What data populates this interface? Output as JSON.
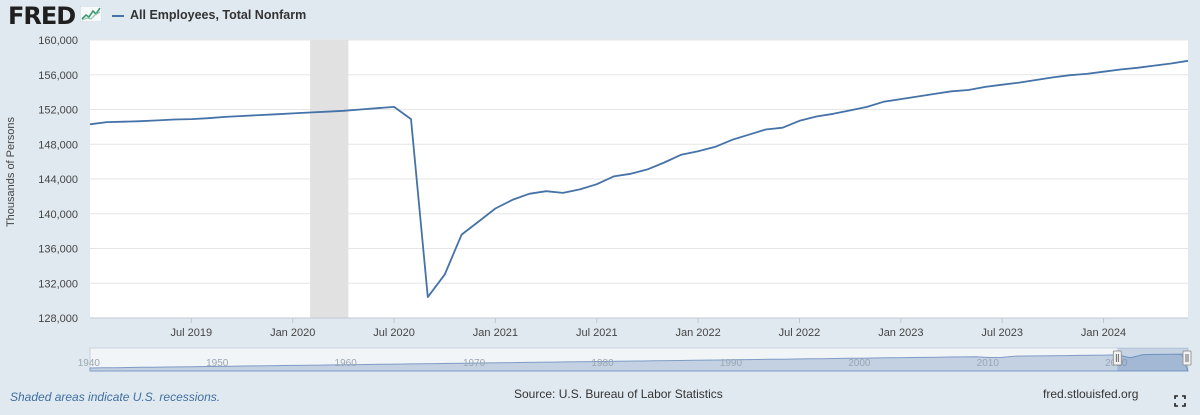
{
  "header": {
    "logo": "FRED",
    "legend_label": "All Employees, Total Nonfarm",
    "series_color": "#4572a7"
  },
  "footer": {
    "recession_note": "Shaded areas indicate U.S. recessions.",
    "source": "Source: U.S. Bureau of Labor Statistics",
    "site": "fred.stlouisfed.org"
  },
  "navigator": {
    "year_labels": [
      "1940",
      "1950",
      "1960",
      "1970",
      "1980",
      "1990",
      "2000",
      "2010",
      "2020"
    ]
  },
  "chart_data": {
    "type": "line",
    "title": "",
    "xlabel": "",
    "ylabel": "Thousands of Persons",
    "ylim": [
      128000,
      160000
    ],
    "grid": true,
    "x_ticks": [
      "Jul 2019",
      "Jan 2020",
      "Jul 2020",
      "Jan 2021",
      "Jul 2021",
      "Jan 2022",
      "Jul 2022",
      "Jan 2023",
      "Jul 2023",
      "Jan 2024"
    ],
    "y_ticks": [
      "128,000",
      "132,000",
      "136,000",
      "140,000",
      "144,000",
      "148,000",
      "152,000",
      "156,000",
      "160,000"
    ],
    "recession": {
      "start": "2020-02",
      "end": "2020-04"
    },
    "series": [
      {
        "x": [
          "2019-01",
          "2019-02",
          "2019-03",
          "2019-04",
          "2019-05",
          "2019-06",
          "2019-07",
          "2019-08",
          "2019-09",
          "2019-10",
          "2019-11",
          "2019-12",
          "2020-01",
          "2020-02",
          "2020-03",
          "2020-04",
          "2020-05",
          "2020-06",
          "2020-07",
          "2020-08",
          "2020-09",
          "2020-10",
          "2020-11",
          "2020-12",
          "2021-01",
          "2021-02",
          "2021-03",
          "2021-04",
          "2021-05",
          "2021-06",
          "2021-07",
          "2021-08",
          "2021-09",
          "2021-10",
          "2021-11",
          "2021-12",
          "2022-01",
          "2022-02",
          "2022-03",
          "2022-04",
          "2022-05",
          "2022-06",
          "2022-07",
          "2022-08",
          "2022-09",
          "2022-10",
          "2022-11",
          "2022-12",
          "2023-01",
          "2023-02",
          "2023-03",
          "2023-04",
          "2023-05",
          "2023-06",
          "2023-07",
          "2023-08",
          "2023-09",
          "2023-10",
          "2023-11",
          "2023-12",
          "2024-01",
          "2024-02",
          "2024-03",
          "2024-04",
          "2024-05",
          "2024-06"
        ],
        "values": [
          150300,
          150550,
          150600,
          150650,
          150750,
          150850,
          150900,
          151000,
          151150,
          151250,
          151350,
          151450,
          151550,
          151650,
          151750,
          151850,
          152000,
          152150,
          152300,
          150900,
          130400,
          133000,
          137600,
          139100,
          140600,
          141600,
          142300,
          142600,
          142400,
          142800,
          143400,
          144300,
          144600,
          145100,
          145900,
          146800,
          147200,
          147700,
          148500,
          149100,
          149700,
          149900,
          150700,
          151200,
          151500,
          151900,
          152300,
          152900,
          153200,
          153500,
          153800,
          154100,
          154250,
          154600,
          154850,
          155100,
          155400,
          155700,
          155950,
          156100,
          156350,
          156600,
          156800,
          157050,
          157300,
          157600
        ]
      }
    ]
  }
}
